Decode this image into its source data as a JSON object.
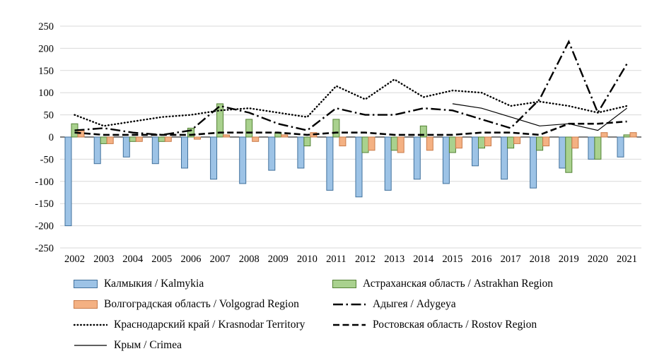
{
  "chart_data": {
    "type": "combo-bar-line",
    "title": "",
    "xlabel": "",
    "ylabel": "",
    "ylim": [
      -250,
      250
    ],
    "ytick_step": 50,
    "ytick_labels": [
      "250",
      "200",
      "150",
      "100",
      "50",
      "0",
      "-50",
      "-100",
      "-150",
      "-200",
      "-250"
    ],
    "grid": true,
    "legend_position": "bottom-left",
    "categories": [
      "2002",
      "2003",
      "2004",
      "2005",
      "2006",
      "2007",
      "2008",
      "2009",
      "2010",
      "2011",
      "2012",
      "2013",
      "2014",
      "2015",
      "2016",
      "2017",
      "2018",
      "2019",
      "2020",
      "2021"
    ],
    "bar_series": [
      {
        "name": "Калмыкия / Kalmykia",
        "fill": "#9DC3E6",
        "stroke": "#41719C",
        "values": [
          -200,
          -60,
          -45,
          -60,
          -70,
          -95,
          -105,
          -75,
          -70,
          -120,
          -135,
          -120,
          -95,
          -105,
          -65,
          -95,
          -115,
          -70,
          -50,
          -45
        ]
      },
      {
        "name": "Астраханская область / Astrakhan Region",
        "fill": "#A9D18E",
        "stroke": "#548235",
        "values": [
          30,
          -15,
          -10,
          -10,
          20,
          75,
          40,
          10,
          -20,
          40,
          -35,
          -30,
          25,
          -35,
          -25,
          -25,
          -30,
          -80,
          -50,
          5
        ]
      },
      {
        "name": "Волгоградская область / Volgograd Region",
        "fill": "#F4B183",
        "stroke": "#C97B4A",
        "values": [
          15,
          -15,
          -10,
          -10,
          -5,
          5,
          -10,
          5,
          10,
          -20,
          -30,
          -35,
          -30,
          -25,
          -20,
          -15,
          -20,
          -25,
          10,
          10
        ]
      }
    ],
    "line_series": [
      {
        "name": "Адыгея / Adygeya",
        "style": "dashdot",
        "width": 2.4,
        "color": "#000000",
        "values": [
          15,
          20,
          10,
          5,
          15,
          70,
          55,
          30,
          15,
          65,
          50,
          50,
          65,
          60,
          40,
          20,
          85,
          215,
          55,
          165
        ]
      },
      {
        "name": "Краснодарский край / Krasnodar Territory",
        "style": "dotted",
        "width": 2.4,
        "color": "#000000",
        "values": [
          50,
          25,
          35,
          45,
          50,
          60,
          65,
          55,
          45,
          115,
          85,
          130,
          90,
          105,
          100,
          70,
          80,
          70,
          55,
          70
        ]
      },
      {
        "name": "Ростовская область / Rostov Region",
        "style": "dashed",
        "width": 2.6,
        "color": "#000000",
        "values": [
          10,
          5,
          5,
          5,
          5,
          10,
          10,
          10,
          5,
          10,
          10,
          5,
          5,
          5,
          10,
          10,
          5,
          30,
          30,
          35
        ]
      },
      {
        "name": "Крым / Crimea",
        "style": "solid",
        "width": 1.2,
        "color": "#000000",
        "values": [
          null,
          null,
          null,
          null,
          null,
          null,
          null,
          null,
          null,
          null,
          null,
          null,
          null,
          75,
          65,
          45,
          25,
          30,
          15,
          65
        ]
      }
    ],
    "legend_order": [
      [
        "bar",
        0
      ],
      [
        "bar",
        1
      ],
      [
        "bar",
        2
      ],
      [
        "line",
        0
      ],
      [
        "line",
        1
      ],
      [
        "line",
        2
      ],
      [
        "line",
        3
      ]
    ],
    "colors": {
      "grid": "#D9D9D9",
      "zero_axis": "#000000",
      "text": "#000000",
      "background": "#FFFFFF"
    }
  }
}
